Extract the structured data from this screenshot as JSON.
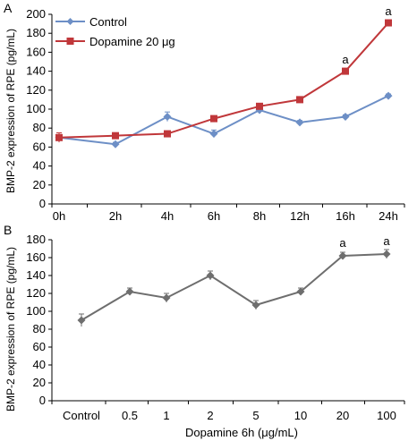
{
  "chart_data": [
    {
      "type": "line",
      "panel_label": "A",
      "title": "",
      "xlabel": "",
      "ylabel": "BMP-2 expression of RPE (pg/mL)",
      "categories": [
        "0h",
        "2h",
        "4h",
        "6h",
        "8h",
        "12h",
        "16h",
        "24h"
      ],
      "ylim": [
        0,
        200
      ],
      "yticks": [
        0,
        20,
        40,
        60,
        80,
        100,
        120,
        140,
        160,
        180,
        200
      ],
      "grid": false,
      "legend": "top-left",
      "series": [
        {
          "name": "Control",
          "color": "#6d8fc6",
          "marker": "diamond",
          "values": [
            70,
            63,
            92,
            74,
            99,
            86,
            92,
            114
          ],
          "errors": [
            3,
            2,
            5,
            4,
            2,
            2,
            2,
            2
          ]
        },
        {
          "name": "Dopamine 20 μg",
          "color": "#c0373a",
          "marker": "square",
          "values": [
            70,
            72,
            74,
            90,
            103,
            110,
            140,
            191
          ],
          "errors": [
            5,
            2,
            2,
            2,
            2,
            2,
            3,
            3
          ]
        }
      ],
      "annotations": [
        {
          "text": "a",
          "category": "16h",
          "y": 148
        },
        {
          "text": "a",
          "category": "24h",
          "y": 199
        }
      ]
    },
    {
      "type": "line",
      "panel_label": "B",
      "title": "",
      "xlabel": "Dopamine 6h (μg/mL)",
      "ylabel": "BMP-2 expression of RPE (pg/mL)",
      "categories": [
        "Control",
        "0.5",
        "1",
        "2",
        "5",
        "10",
        "20",
        "100"
      ],
      "ylim": [
        0,
        180
      ],
      "yticks": [
        0,
        20,
        40,
        60,
        80,
        100,
        120,
        140,
        160,
        180
      ],
      "grid": false,
      "legend": "none",
      "series": [
        {
          "color": "#6e6e6e",
          "marker": "diamond",
          "values": [
            90,
            122,
            115,
            140,
            107,
            122,
            162,
            164
          ],
          "errors": [
            7,
            4,
            5,
            5,
            5,
            4,
            4,
            5
          ]
        }
      ],
      "annotations": [
        {
          "text": "a",
          "category": "20",
          "y": 172
        },
        {
          "text": "a",
          "category": "100",
          "y": 174
        }
      ]
    }
  ]
}
